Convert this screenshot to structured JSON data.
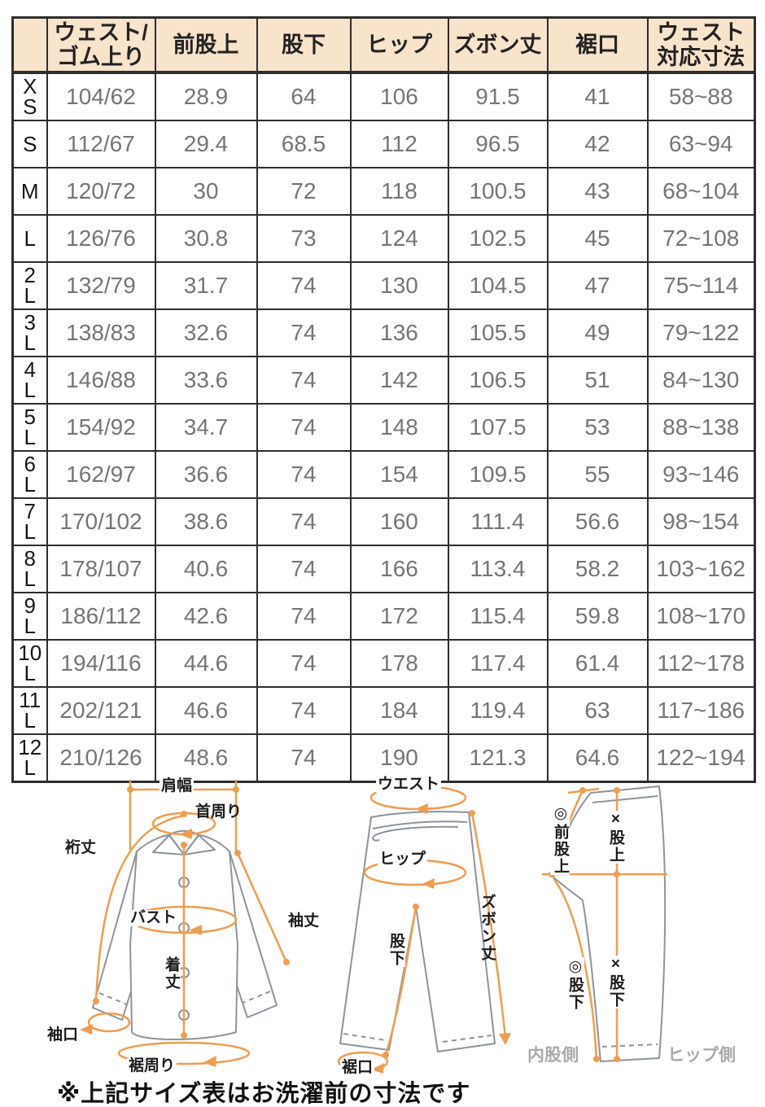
{
  "colors": {
    "header_bg": "#f8e3cb",
    "accent_orange": "#ee9d4f",
    "grid_line": "#2d2d2d",
    "value_text": "#757575",
    "garment_outline": "#8d939a",
    "muted_label": "#a9a9a9"
  },
  "table": {
    "corner_label": "",
    "headers": [
      "ウェスト/\nゴム上り",
      "前股上",
      "股下",
      "ヒップ",
      "ズボン丈",
      "裾口",
      "ウェスト\n対応寸法"
    ],
    "rows": [
      {
        "size": "XS",
        "size_display": "X\nS",
        "values": [
          "104/62",
          "28.9",
          "64",
          "106",
          "91.5",
          "41",
          "58~88"
        ]
      },
      {
        "size": "S",
        "size_display": "S",
        "values": [
          "112/67",
          "29.4",
          "68.5",
          "112",
          "96.5",
          "42",
          "63~94"
        ]
      },
      {
        "size": "M",
        "size_display": "M",
        "values": [
          "120/72",
          "30",
          "72",
          "118",
          "100.5",
          "43",
          "68~104"
        ]
      },
      {
        "size": "L",
        "size_display": "L",
        "values": [
          "126/76",
          "30.8",
          "73",
          "124",
          "102.5",
          "45",
          "72~108"
        ]
      },
      {
        "size": "2L",
        "size_display": "2\nL",
        "values": [
          "132/79",
          "31.7",
          "74",
          "130",
          "104.5",
          "47",
          "75~114"
        ]
      },
      {
        "size": "3L",
        "size_display": "3\nL",
        "values": [
          "138/83",
          "32.6",
          "74",
          "136",
          "105.5",
          "49",
          "79~122"
        ]
      },
      {
        "size": "4L",
        "size_display": "4\nL",
        "values": [
          "146/88",
          "33.6",
          "74",
          "142",
          "106.5",
          "51",
          "84~130"
        ]
      },
      {
        "size": "5L",
        "size_display": "5\nL",
        "values": [
          "154/92",
          "34.7",
          "74",
          "148",
          "107.5",
          "53",
          "88~138"
        ]
      },
      {
        "size": "6L",
        "size_display": "6\nL",
        "values": [
          "162/97",
          "36.6",
          "74",
          "154",
          "109.5",
          "55",
          "93~146"
        ]
      },
      {
        "size": "7L",
        "size_display": "7\nL",
        "values": [
          "170/102",
          "38.6",
          "74",
          "160",
          "111.4",
          "56.6",
          "98~154"
        ]
      },
      {
        "size": "8L",
        "size_display": "8\nL",
        "values": [
          "178/107",
          "40.6",
          "74",
          "166",
          "113.4",
          "58.2",
          "103~162"
        ]
      },
      {
        "size": "9L",
        "size_display": "9\nL",
        "values": [
          "186/112",
          "42.6",
          "74",
          "172",
          "115.4",
          "59.8",
          "108~170"
        ]
      },
      {
        "size": "10L",
        "size_display": "10\nL",
        "values": [
          "194/116",
          "44.6",
          "74",
          "178",
          "117.4",
          "61.4",
          "112~178"
        ]
      },
      {
        "size": "11L",
        "size_display": "11\nL",
        "values": [
          "202/121",
          "46.6",
          "74",
          "184",
          "119.4",
          "63",
          "117~186"
        ]
      },
      {
        "size": "12L",
        "size_display": "12\nL",
        "values": [
          "210/126",
          "48.6",
          "74",
          "190",
          "121.3",
          "64.6",
          "122~194"
        ]
      }
    ]
  },
  "diagrams": {
    "pajama_top": {
      "shoulder_width": "肩幅",
      "neck_around": "首周り",
      "sleeve_from_center_back": "裄丈",
      "bust": "バスト",
      "sleeve_length": "袖丈",
      "body_length": "着丈",
      "cuff_opening": "袖口",
      "hem_around": "裾周り"
    },
    "pants_front": {
      "waist": "ウエスト",
      "hip": "ヒップ",
      "pants_length": "ズボン丈",
      "inseam": "股下",
      "hem_opening": "裾口"
    },
    "pants_side": {
      "front_rise": "◎前股上",
      "rise": "×股上",
      "inseam_inner": "◎股下",
      "inseam_side": "×股下",
      "inner_leg_side": "内股側",
      "hip_side": "ヒップ側"
    }
  },
  "note": "※上記サイズ表はお洗濯前の寸法です"
}
